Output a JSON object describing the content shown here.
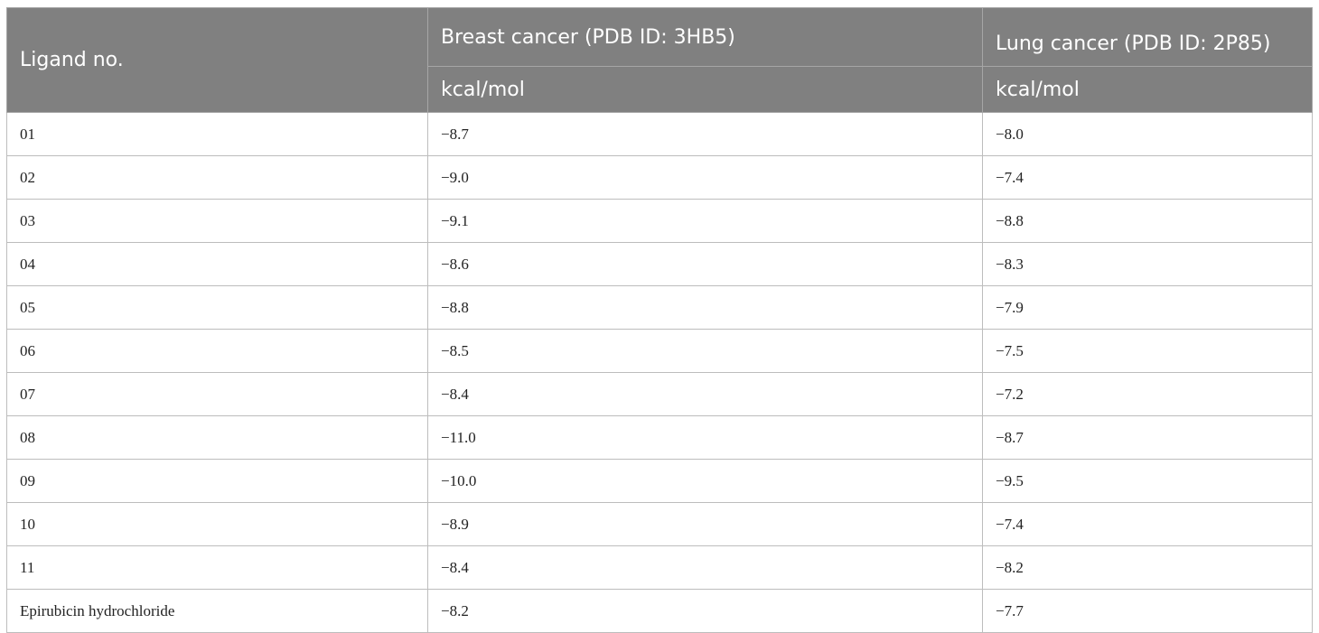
{
  "table": {
    "header": {
      "ligand_label": "Ligand no.",
      "breast_label": "Breast cancer (PDB ID: 3HB5)",
      "lung_label": "Lung cancer (PDB ID: 2P85)",
      "breast_unit": "kcal/mol",
      "lung_unit": "kcal/mol"
    },
    "rows": [
      {
        "ligand": "01",
        "breast": "−8.7",
        "lung": "−8.0"
      },
      {
        "ligand": "02",
        "breast": "−9.0",
        "lung": "−7.4"
      },
      {
        "ligand": "03",
        "breast": "−9.1",
        "lung": "−8.8"
      },
      {
        "ligand": "04",
        "breast": "−8.6",
        "lung": "−8.3"
      },
      {
        "ligand": "05",
        "breast": "−8.8",
        "lung": "−7.9"
      },
      {
        "ligand": "06",
        "breast": "−8.5",
        "lung": "−7.5"
      },
      {
        "ligand": "07",
        "breast": "−8.4",
        "lung": "−7.2"
      },
      {
        "ligand": "08",
        "breast": "−11.0",
        "lung": "−8.7"
      },
      {
        "ligand": "09",
        "breast": "−10.0",
        "lung": "−9.5"
      },
      {
        "ligand": "10",
        "breast": "−8.9",
        "lung": "−7.4"
      },
      {
        "ligand": "11",
        "breast": "−8.4",
        "lung": "−8.2"
      },
      {
        "ligand": "Epirubicin hydrochloride",
        "breast": "−8.2",
        "lung": "−7.7"
      }
    ]
  },
  "colors": {
    "header_bg": "#808080",
    "header_text": "#ffffff",
    "cell_border": "#bdbdbd"
  }
}
